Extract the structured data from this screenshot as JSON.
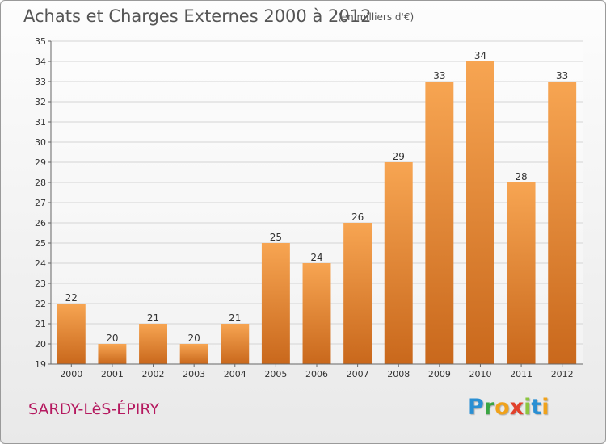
{
  "header": {
    "title": "Achats et Charges Externes 2000 à 2012",
    "unit": "(en milliers d'€)"
  },
  "footer": {
    "commune": "SARDY-LèS-ÉPIRY",
    "brand_letters": [
      "P",
      "r",
      "o",
      "x",
      "i",
      "t",
      "i"
    ]
  },
  "colors": {
    "bar_top": "#f7a552",
    "bar_bottom": "#c9681c",
    "commune_text": "#b5195f",
    "grid": "#d4d4d4"
  },
  "chart_data": {
    "type": "bar",
    "title": "Achats et Charges Externes 2000 à 2012",
    "subtitle": "(en milliers d'€)",
    "xlabel": "",
    "ylabel": "",
    "categories": [
      "2000",
      "2001",
      "2002",
      "2003",
      "2004",
      "2005",
      "2006",
      "2007",
      "2008",
      "2009",
      "2010",
      "2011",
      "2012"
    ],
    "values": [
      22,
      20,
      21,
      20,
      21,
      25,
      24,
      26,
      29,
      33,
      34,
      28,
      33
    ],
    "data_labels": [
      "22",
      "20",
      "21",
      "20",
      "21",
      "25",
      "24",
      "26",
      "29",
      "33",
      "34",
      "28",
      "33"
    ],
    "ylim": [
      19,
      35
    ],
    "yticks": [
      19,
      20,
      21,
      22,
      23,
      24,
      25,
      26,
      27,
      28,
      29,
      30,
      31,
      32,
      33,
      34,
      35
    ],
    "ytick_labels": [
      "19",
      "20",
      "21",
      "22",
      "23",
      "24",
      "25",
      "26",
      "27",
      "28",
      "29",
      "30",
      "31",
      "32",
      "33",
      "34",
      "35"
    ],
    "grid": true,
    "legend": "none"
  }
}
